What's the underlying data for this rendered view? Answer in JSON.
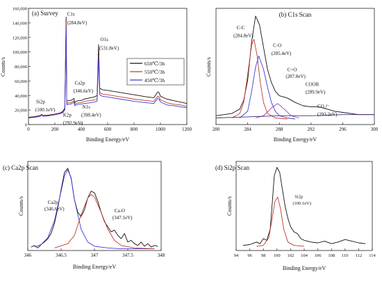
{
  "chart_data": [
    {
      "id": "survey",
      "type": "line",
      "title": "(a) Survey",
      "xlabel": "Binding Energy/eV",
      "ylabel": "Counts/s",
      "xlim": [
        0,
        1200
      ],
      "ylim": [
        0,
        160000
      ],
      "xticks": [
        0,
        200,
        400,
        600,
        800,
        1000,
        1200
      ],
      "yticks": [
        0,
        20000,
        40000,
        60000,
        80000,
        100000,
        120000,
        140000,
        160000
      ],
      "ytick_labels": [
        "0",
        "20,000",
        "40,000",
        "60,000",
        "80,000",
        "100,000",
        "120,000",
        "140,000",
        "160,000"
      ],
      "legend_position": "right",
      "series": [
        {
          "name": "650℃/3h",
          "color": "#111111",
          "x": [
            0,
            50,
            90,
            100,
            110,
            150,
            200,
            240,
            260,
            275,
            285,
            290,
            300,
            320,
            345,
            350,
            360,
            380,
            398,
            420,
            470,
            500,
            520,
            531,
            540,
            560,
            600,
            700,
            800,
            900,
            950,
            980,
            990,
            1000,
            1050,
            1100,
            1150,
            1200
          ],
          "y": [
            10000,
            11000,
            12500,
            14000,
            12500,
            13000,
            14500,
            16000,
            18000,
            23000,
            148000,
            32000,
            33000,
            33000,
            36000,
            30000,
            32000,
            33000,
            33000,
            35000,
            37000,
            38000,
            40000,
            110000,
            50000,
            48000,
            47000,
            44000,
            41000,
            38000,
            37000,
            45000,
            44000,
            39000,
            35000,
            33000,
            31000,
            29000
          ]
        },
        {
          "name": "550℃/3h",
          "color": "#c0392b",
          "x": [
            0,
            50,
            90,
            100,
            110,
            150,
            200,
            240,
            260,
            275,
            285,
            290,
            300,
            320,
            345,
            350,
            360,
            380,
            398,
            420,
            470,
            500,
            520,
            531,
            540,
            560,
            600,
            700,
            800,
            900,
            950,
            980,
            990,
            1000,
            1050,
            1100,
            1150,
            1200
          ],
          "y": [
            9500,
            10500,
            12000,
            13500,
            12000,
            12500,
            14000,
            15500,
            17000,
            21000,
            140000,
            29000,
            30000,
            30000,
            33000,
            28000,
            29000,
            30000,
            30000,
            32000,
            33000,
            34000,
            35000,
            95000,
            44000,
            42000,
            41000,
            38000,
            35000,
            33000,
            32000,
            39000,
            38000,
            34000,
            30000,
            28000,
            27000,
            25000
          ]
        },
        {
          "name": "450℃/3h",
          "color": "#3b3bd6",
          "x": [
            0,
            50,
            90,
            100,
            110,
            150,
            200,
            240,
            260,
            275,
            285,
            290,
            300,
            320,
            345,
            350,
            360,
            380,
            398,
            420,
            470,
            500,
            520,
            531,
            540,
            560,
            600,
            700,
            800,
            900,
            950,
            980,
            990,
            1000,
            1050,
            1100,
            1150,
            1200
          ],
          "y": [
            9000,
            10000,
            11500,
            13000,
            11500,
            12000,
            13500,
            15000,
            16500,
            20000,
            136000,
            27000,
            28000,
            28000,
            31000,
            26000,
            27000,
            28000,
            28000,
            29000,
            30000,
            31000,
            32000,
            92000,
            41000,
            39000,
            38000,
            35000,
            32000,
            30000,
            29000,
            36000,
            35000,
            31000,
            27000,
            26000,
            24500,
            23000
          ]
        }
      ],
      "annotations": [
        {
          "text": "C1s",
          "x": 293,
          "y": 150000
        },
        {
          "text": "(284.8eV)",
          "x": 293,
          "y": 138000
        },
        {
          "text": "O1s",
          "x": 545,
          "y": 115000
        },
        {
          "text": "(531.8eV)",
          "x": 535,
          "y": 103000
        },
        {
          "text": "Ca2p",
          "x": 350,
          "y": 55000
        },
        {
          "text": "(346.6eV)",
          "x": 340,
          "y": 44000
        },
        {
          "text": "Si2p",
          "x": 58,
          "y": 29000
        },
        {
          "text": "(100.1eV)",
          "x": 52,
          "y": 18000
        },
        {
          "text": "N1s",
          "x": 408,
          "y": 22000
        },
        {
          "text": "(398.4eV)",
          "x": 400,
          "y": 11000
        },
        {
          "text": "K2p",
          "x": 262,
          "y": 11000
        },
        {
          "text": "(292.9eV)",
          "x": 262,
          "y": 0
        }
      ]
    },
    {
      "id": "c1s",
      "type": "line",
      "title": "(b) C1s Scan",
      "xlabel": "Binding Energy/eV",
      "ylabel": "Counts/s",
      "xlim": [
        280,
        300
      ],
      "xticks": [
        280,
        284,
        288,
        292,
        296,
        300
      ],
      "curves": [
        {
          "role": "envelope",
          "color": "#111111",
          "x": [
            280,
            281,
            282,
            283,
            283.5,
            284,
            284.5,
            285,
            285.5,
            286,
            286.5,
            287,
            287.5,
            288,
            288.5,
            289,
            290,
            291,
            292,
            293,
            294,
            295,
            296,
            297,
            298,
            299,
            300
          ],
          "y": [
            0.08,
            0.09,
            0.1,
            0.14,
            0.22,
            0.4,
            0.75,
            0.98,
            0.9,
            0.7,
            0.5,
            0.38,
            0.3,
            0.26,
            0.25,
            0.24,
            0.2,
            0.17,
            0.16,
            0.16,
            0.14,
            0.12,
            0.11,
            0.1,
            0.09,
            0.09,
            0.09
          ]
        },
        {
          "role": "fit",
          "color": "#c0392b",
          "x": [
            282,
            283,
            283.5,
            284,
            284.5,
            284.8,
            285.2,
            285.6,
            286,
            286.5,
            287.5,
            289
          ],
          "y": [
            0.06,
            0.1,
            0.2,
            0.45,
            0.72,
            0.77,
            0.62,
            0.38,
            0.2,
            0.1,
            0.06,
            0.05
          ]
        },
        {
          "role": "fit",
          "color": "#3b3bd6",
          "x": [
            283,
            284,
            284.5,
            285,
            285.4,
            286,
            286.5,
            287,
            287.5,
            288,
            289,
            290
          ],
          "y": [
            0.06,
            0.12,
            0.3,
            0.52,
            0.62,
            0.5,
            0.34,
            0.2,
            0.12,
            0.08,
            0.06,
            0.05
          ]
        },
        {
          "role": "fit",
          "color": "#8e44ad",
          "x": [
            285,
            286,
            287,
            287.8,
            288.6,
            289.5,
            290.5
          ],
          "y": [
            0.06,
            0.08,
            0.15,
            0.19,
            0.14,
            0.08,
            0.06
          ]
        },
        {
          "role": "baseline",
          "color": "#4a2a7a",
          "x": [
            280,
            284,
            288,
            292,
            296,
            300
          ],
          "y": [
            0.06,
            0.07,
            0.08,
            0.08,
            0.09,
            0.09
          ]
        }
      ],
      "annotations": [
        {
          "text": "C-C",
          "x": 282.6,
          "y": 0.86
        },
        {
          "text": "(284.8eV)",
          "x": 282.2,
          "y": 0.79
        },
        {
          "text": "C-O",
          "x": 287.2,
          "y": 0.7
        },
        {
          "text": "(285.4eV)",
          "x": 287.0,
          "y": 0.63
        },
        {
          "text": "C=O",
          "x": 289.0,
          "y": 0.48
        },
        {
          "text": "(287.8eV)",
          "x": 288.8,
          "y": 0.42
        },
        {
          "text": "COOR",
          "x": 291.3,
          "y": 0.35
        },
        {
          "text": "(289.9eV)",
          "x": 291.3,
          "y": 0.28
        },
        {
          "text": "CO₃²⁻",
          "x": 292.8,
          "y": 0.15
        },
        {
          "text": "(293.2eV)",
          "x": 292.8,
          "y": 0.08
        }
      ]
    },
    {
      "id": "ca2p",
      "type": "line",
      "title": "(c) Ca2p Scan",
      "xlabel": "Binding Energy/eV",
      "ylabel": "Counts/s",
      "xlim": [
        346,
        348
      ],
      "xticks": [
        346,
        346.5,
        347,
        347.5,
        348
      ],
      "curves": [
        {
          "role": "envelope",
          "color": "#111111",
          "x": [
            346.05,
            346.1,
            346.15,
            346.2,
            346.25,
            346.3,
            346.35,
            346.4,
            346.45,
            346.5,
            346.55,
            346.6,
            346.65,
            346.7,
            346.75,
            346.8,
            346.85,
            346.9,
            346.95,
            347.0,
            347.05,
            347.1,
            347.15,
            347.2,
            347.25,
            347.3,
            347.35,
            347.4,
            347.45,
            347.5,
            347.55,
            347.6,
            347.65,
            347.7,
            347.75,
            347.8,
            347.85,
            347.9,
            347.95
          ],
          "y": [
            0.04,
            0.06,
            0.03,
            0.07,
            0.1,
            0.14,
            0.2,
            0.32,
            0.5,
            0.72,
            0.92,
            0.97,
            0.85,
            0.6,
            0.45,
            0.4,
            0.48,
            0.62,
            0.7,
            0.68,
            0.58,
            0.45,
            0.34,
            0.28,
            0.22,
            0.24,
            0.18,
            0.14,
            0.2,
            0.1,
            0.12,
            0.08,
            0.06,
            0.1,
            0.05,
            0.08,
            0.04,
            0.06,
            0.05
          ]
        },
        {
          "role": "fit",
          "color": "#3b3bd6",
          "x": [
            346.1,
            346.2,
            346.3,
            346.4,
            346.5,
            346.55,
            346.6,
            346.65,
            346.7,
            346.8,
            346.9,
            347.0,
            347.2,
            347.4,
            347.9
          ],
          "y": [
            0.04,
            0.07,
            0.15,
            0.35,
            0.7,
            0.88,
            0.95,
            0.86,
            0.6,
            0.25,
            0.1,
            0.05,
            0.03,
            0.02,
            0.02
          ]
        },
        {
          "role": "fit",
          "color": "#c0392b",
          "x": [
            346.4,
            346.6,
            346.7,
            346.8,
            346.9,
            346.95,
            347.0,
            347.1,
            347.2,
            347.3,
            347.4,
            347.6,
            347.9
          ],
          "y": [
            0.03,
            0.08,
            0.18,
            0.42,
            0.62,
            0.66,
            0.63,
            0.45,
            0.25,
            0.12,
            0.06,
            0.03,
            0.02
          ]
        }
      ],
      "annotations": [
        {
          "text": "Ca2p",
          "x": 346.3,
          "y": 0.55
        },
        {
          "text": "(346.6eV)",
          "x": 346.25,
          "y": 0.47
        },
        {
          "text": "Ca-O",
          "x": 347.3,
          "y": 0.45
        },
        {
          "text": "(347.1eV)",
          "x": 347.27,
          "y": 0.37
        }
      ]
    },
    {
      "id": "si2p",
      "type": "line",
      "title": "(d) Si2p Scan",
      "xlabel": "Binding Energy/eV",
      "ylabel": "Counts/s",
      "xlim": [
        94,
        114
      ],
      "xticks": [
        94,
        96,
        98,
        100,
        102,
        104,
        106,
        108,
        110,
        112,
        114
      ],
      "curves": [
        {
          "role": "envelope",
          "color": "#111111",
          "x": [
            95,
            96,
            97,
            97.5,
            98,
            98.5,
            99,
            99.3,
            99.6,
            100,
            100.4,
            100.8,
            101.2,
            101.6,
            102,
            102.5,
            103,
            103.5,
            104,
            105,
            106,
            107,
            108,
            109,
            110,
            111,
            112,
            113
          ],
          "y": [
            0.06,
            0.07,
            0.1,
            0.08,
            0.14,
            0.12,
            0.25,
            0.55,
            0.88,
            0.98,
            0.92,
            0.72,
            0.52,
            0.38,
            0.28,
            0.22,
            0.2,
            0.14,
            0.12,
            0.1,
            0.09,
            0.11,
            0.08,
            0.1,
            0.13,
            0.11,
            0.09,
            0.08
          ]
        },
        {
          "role": "fit",
          "color": "#c0392b",
          "x": [
            97,
            98,
            98.8,
            99.3,
            99.7,
            100.1,
            100.5,
            101,
            101.6,
            102.5,
            104
          ],
          "y": [
            0.05,
            0.06,
            0.15,
            0.38,
            0.58,
            0.63,
            0.5,
            0.25,
            0.1,
            0.06,
            0.05
          ]
        }
      ],
      "annotations": [
        {
          "text": "Si2p",
          "x": 102.6,
          "y": 0.62
        },
        {
          "text": "(100.1eV)",
          "x": 102.3,
          "y": 0.54
        }
      ]
    }
  ]
}
